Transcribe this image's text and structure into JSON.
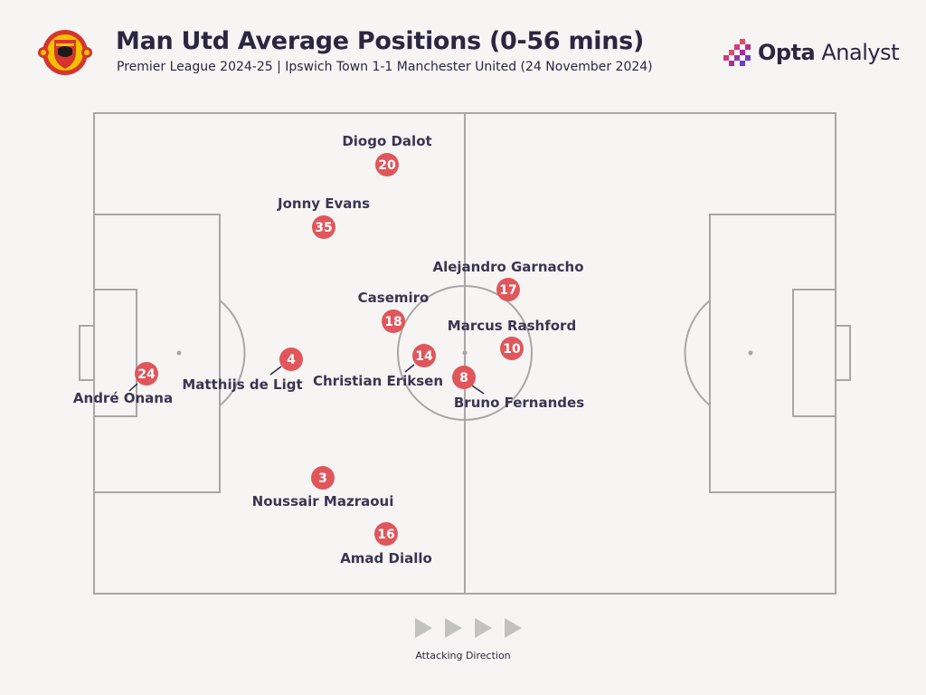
{
  "header": {
    "title": "Man Utd Average Positions (0-56 mins)",
    "subtitle": "Premier League 2024-25 | Ipswich Town 1-1 Manchester United (24 November 2024)"
  },
  "brand": {
    "name_bold": "Opta",
    "name_rest": " Analyst"
  },
  "colors": {
    "marker": "#e0565b",
    "pitch_lines": "#a8a6a6",
    "background": "#f6f5f4",
    "text": "#2b2740",
    "arrows": "#c3c2c3"
  },
  "players": [
    {
      "number": "20",
      "name": "Diogo Dalot"
    },
    {
      "number": "35",
      "name": "Jonny Evans"
    },
    {
      "number": "17",
      "name": "Alejandro Garnacho"
    },
    {
      "number": "18",
      "name": "Casemiro"
    },
    {
      "number": "10",
      "name": "Marcus Rashford"
    },
    {
      "number": "24",
      "name": "André Onana"
    },
    {
      "number": "4",
      "name": "Matthijs de Ligt"
    },
    {
      "number": "14",
      "name": "Christian Eriksen"
    },
    {
      "number": "8",
      "name": "Bruno Fernandes"
    },
    {
      "number": "3",
      "name": "Noussair Mazraoui"
    },
    {
      "number": "16",
      "name": "Amad Diallo"
    }
  ],
  "footer": {
    "direction_label": "Attacking Direction"
  }
}
